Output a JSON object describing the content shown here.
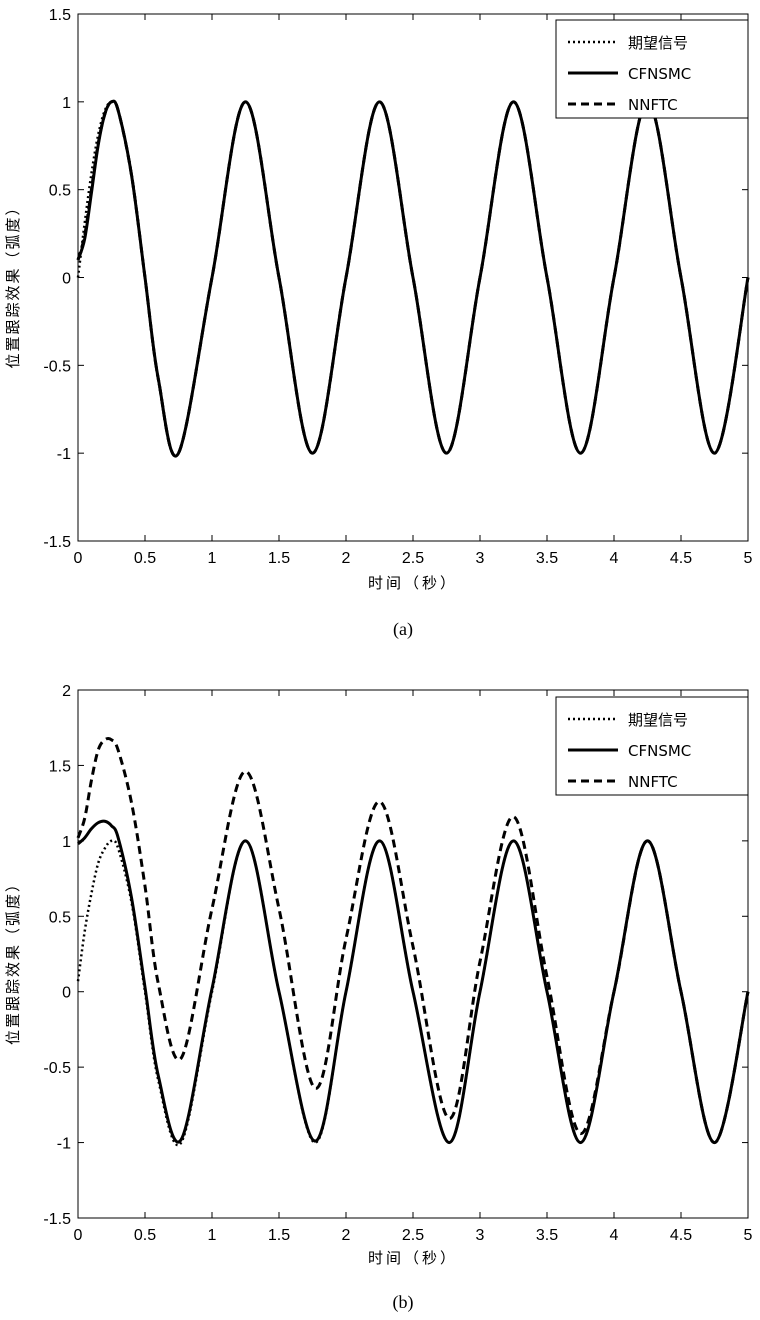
{
  "chart_data": [
    {
      "type": "line",
      "caption": "(a)",
      "xlabel": "时间（秒）",
      "ylabel": "位置跟踪效果（弧度）",
      "xlim": [
        0,
        5
      ],
      "ylim": [
        -1.5,
        1.5
      ],
      "xticks": [
        0,
        0.5,
        1,
        1.5,
        2,
        2.5,
        3,
        3.5,
        4,
        4.5,
        5
      ],
      "xtick_labels": [
        "0",
        "0.5",
        "1",
        "1.5",
        "2",
        "2.5",
        "3",
        "3.5",
        "4",
        "4.5",
        "5"
      ],
      "yticks": [
        -1.5,
        -1,
        -0.5,
        0,
        0.5,
        1,
        1.5
      ],
      "ytick_labels": [
        "-1.5",
        "-1",
        "-0.5",
        "0",
        "0.5",
        "1",
        "1.5"
      ],
      "legend_position": "top-right",
      "x": [
        0,
        0.05,
        0.1,
        0.15,
        0.2,
        0.25,
        0.3,
        0.4,
        0.5,
        0.6,
        0.75,
        1.0,
        1.25,
        1.5,
        1.75,
        2.0,
        2.25,
        2.5,
        2.75,
        3.0,
        3.25,
        3.5,
        3.75,
        4.0,
        4.25,
        4.5,
        4.75,
        5.0
      ],
      "series": [
        {
          "name": "期望信号",
          "style": "dotted",
          "values": [
            0.0,
            0.31,
            0.59,
            0.81,
            0.95,
            1.0,
            0.95,
            0.59,
            0.0,
            -0.59,
            -1.0,
            0.0,
            1.0,
            0.0,
            -1.0,
            0.0,
            1.0,
            0.0,
            -1.0,
            0.0,
            1.0,
            0.0,
            -1.0,
            0.0,
            1.0,
            0.0,
            -1.0,
            0.0
          ]
        },
        {
          "name": "CFNSMC",
          "style": "solid",
          "values": [
            0.1,
            0.22,
            0.48,
            0.75,
            0.93,
            1.0,
            0.95,
            0.58,
            0.0,
            -0.58,
            -1.0,
            0.0,
            1.0,
            0.0,
            -1.0,
            0.0,
            1.0,
            0.0,
            -1.0,
            0.0,
            1.0,
            0.0,
            -1.0,
            0.0,
            1.0,
            0.0,
            -1.0,
            0.0
          ]
        },
        {
          "name": "NNFTC",
          "style": "dashed",
          "values": [
            0.1,
            0.24,
            0.5,
            0.76,
            0.93,
            1.0,
            0.95,
            0.58,
            0.0,
            -0.58,
            -1.0,
            0.0,
            1.0,
            0.0,
            -1.0,
            0.0,
            1.0,
            0.0,
            -1.0,
            0.0,
            1.0,
            0.0,
            -1.0,
            0.0,
            1.0,
            0.0,
            -1.0,
            0.0
          ]
        }
      ]
    },
    {
      "type": "line",
      "caption": "(b)",
      "xlabel": "时间（秒）",
      "ylabel": "位置跟踪效果（弧度）",
      "xlim": [
        0,
        5
      ],
      "ylim": [
        -1.5,
        2
      ],
      "xticks": [
        0,
        0.5,
        1,
        1.5,
        2,
        2.5,
        3,
        3.5,
        4,
        4.5,
        5
      ],
      "xtick_labels": [
        "0",
        "0.5",
        "1",
        "1.5",
        "2",
        "2.5",
        "3",
        "3.5",
        "4",
        "4.5",
        "5"
      ],
      "yticks": [
        -1.5,
        -1,
        -0.5,
        0,
        0.5,
        1,
        1.5,
        2
      ],
      "ytick_labels": [
        "-1.5",
        "-1",
        "-0.5",
        "0",
        "0.5",
        "1",
        "1.5",
        "2"
      ],
      "legend_position": "top-right",
      "x": [
        0,
        0.05,
        0.1,
        0.15,
        0.2,
        0.25,
        0.3,
        0.4,
        0.5,
        0.6,
        0.77,
        1.0,
        1.25,
        1.5,
        1.77,
        2.0,
        2.25,
        2.5,
        2.77,
        3.0,
        3.25,
        3.5,
        3.75,
        4.0,
        4.25,
        4.5,
        4.75,
        5.0
      ],
      "series": [
        {
          "name": "期望信号",
          "style": "dotted",
          "values": [
            0.07,
            0.4,
            0.65,
            0.85,
            0.95,
            1.0,
            0.95,
            0.59,
            0.0,
            -0.59,
            -1.0,
            0.0,
            1.0,
            0.0,
            -1.0,
            0.0,
            1.0,
            0.0,
            -1.0,
            0.0,
            1.0,
            0.0,
            -1.0,
            0.0,
            1.0,
            0.0,
            -1.0,
            0.0
          ]
        },
        {
          "name": "CFNSMC",
          "style": "solid",
          "values": [
            0.98,
            1.02,
            1.08,
            1.12,
            1.13,
            1.1,
            1.02,
            0.62,
            0.03,
            -0.56,
            -0.98,
            0.02,
            1.0,
            0.0,
            -0.99,
            0.0,
            1.0,
            0.0,
            -1.0,
            0.0,
            1.0,
            0.0,
            -1.0,
            0.0,
            1.0,
            0.0,
            -1.0,
            0.0
          ]
        },
        {
          "name": "NNFTC",
          "style": "dashed",
          "values": [
            1.02,
            1.15,
            1.4,
            1.6,
            1.67,
            1.67,
            1.6,
            1.25,
            0.7,
            0.05,
            -0.44,
            0.55,
            1.46,
            0.55,
            -0.64,
            0.35,
            1.26,
            0.3,
            -0.84,
            0.2,
            1.16,
            0.1,
            -0.94,
            0.0,
            1.0,
            0.0,
            -1.0,
            0.0
          ]
        }
      ]
    }
  ]
}
